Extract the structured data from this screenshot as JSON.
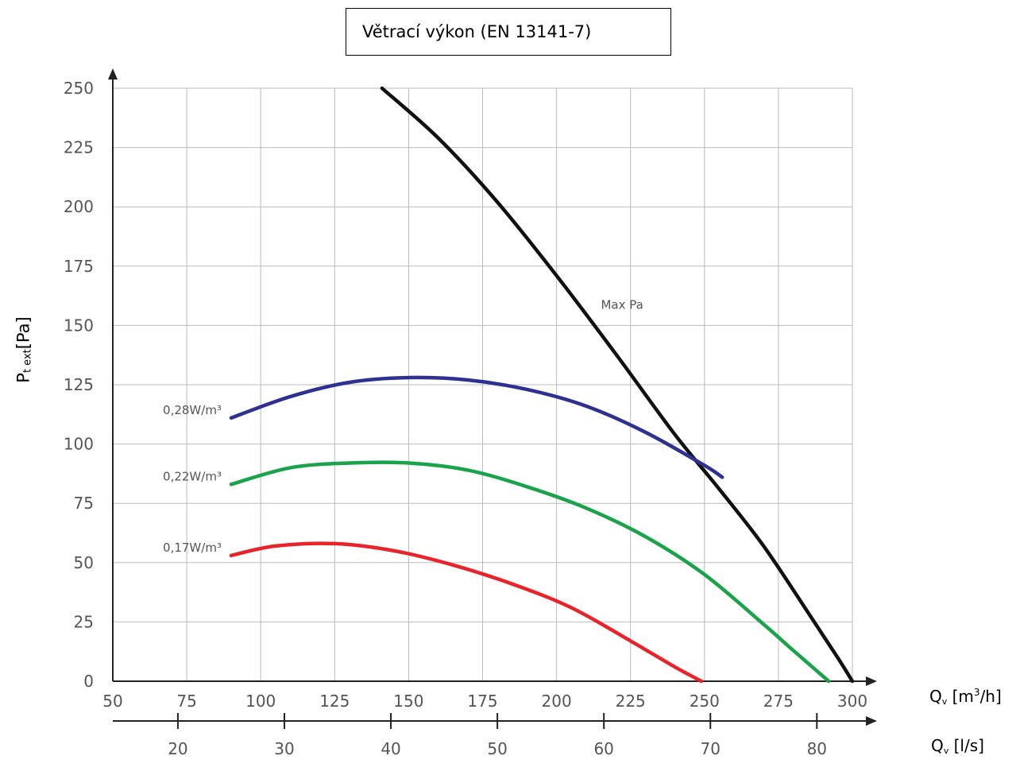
{
  "chart_data": {
    "type": "line",
    "title": "Větrací výkon (EN 13141-7)",
    "ylabel_main": "P",
    "ylabel_sub": "t ext",
    "ylabel_unit": "[Pa]",
    "x_primary_label": {
      "q": "Q",
      "sub": "v",
      "unit_pre": " [m",
      "sup": "3",
      "unit_post": "/h]"
    },
    "x_secondary_label": {
      "q": "Q",
      "sub": "v",
      "unit": " [l/s]"
    },
    "xlim": [
      50,
      300
    ],
    "ylim": [
      0,
      250
    ],
    "x_ticks": [
      "50",
      "75",
      "100",
      "125",
      "150",
      "175",
      "200",
      "225",
      "250",
      "275",
      "300"
    ],
    "y_ticks": [
      "0",
      "25",
      "50",
      "75",
      "100",
      "125",
      "150",
      "175",
      "200",
      "225",
      "250"
    ],
    "x_secondary_ticks": [
      "20",
      "30",
      "40",
      "50",
      "60",
      "70",
      "80"
    ],
    "grid": true,
    "series": [
      {
        "name": "Max Pa",
        "color": "#111111",
        "x": [
          141,
          160,
          180,
          200,
          220,
          240,
          255,
          270,
          285,
          295,
          300
        ],
        "y": [
          250,
          229,
          202,
          171,
          138,
          104,
          81,
          57,
          29,
          10,
          0
        ]
      },
      {
        "name": "0,28W/m³",
        "color": "#2e3092",
        "x": [
          90,
          110,
          130,
          150,
          170,
          190,
          210,
          230,
          250,
          256
        ],
        "y": [
          111,
          120,
          126,
          128,
          127,
          123,
          116,
          105,
          91,
          86
        ]
      },
      {
        "name": "0,22W/m³",
        "color": "#1aa34a",
        "x": [
          90,
          110,
          130,
          150,
          170,
          190,
          210,
          230,
          250,
          270,
          280,
          292
        ],
        "y": [
          83,
          90,
          92,
          92,
          89,
          82,
          73,
          61,
          45,
          24,
          13,
          0
        ]
      },
      {
        "name": "0,17W/m³",
        "color": "#e8232a",
        "x": [
          90,
          105,
          125,
          145,
          165,
          185,
          205,
          225,
          240,
          249
        ],
        "y": [
          53,
          57,
          58,
          55,
          49,
          41,
          31,
          17,
          6,
          0
        ]
      }
    ]
  }
}
